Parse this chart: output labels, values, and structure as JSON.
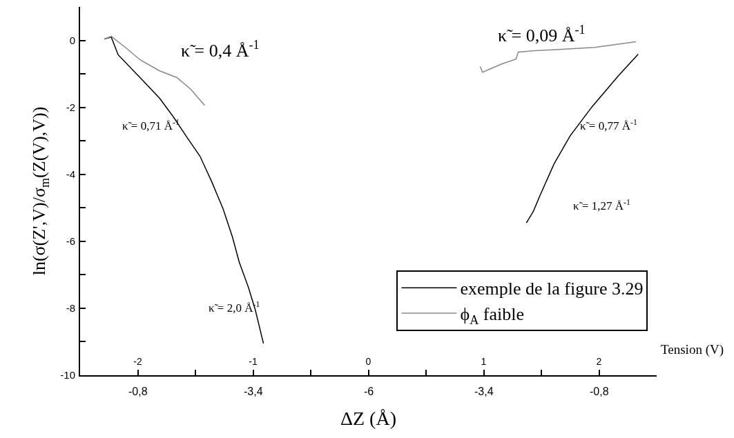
{
  "chart_data": {
    "type": "line",
    "xlabel": "Tension (V)",
    "ylabel": "ln(σ(Z',V)/σ$_{m}$(Z(V),V))",
    "xlim": [
      -2.5,
      2.5
    ],
    "xticks": [
      -2,
      {
        "value": -1.5,
        "label": null
      },
      -1,
      {
        "value": -0.5,
        "label": null
      },
      0,
      {
        "value": 0.5,
        "label": null
      },
      1,
      {
        "value": 1.5,
        "label": null
      },
      2
    ],
    "ylim": [
      -10,
      1
    ],
    "yticks": [
      -10,
      {
        "value": -9,
        "label": null
      },
      -8,
      {
        "value": -7,
        "label": null
      },
      -6,
      {
        "value": -5,
        "label": null
      },
      -4,
      {
        "value": -3,
        "label": null
      },
      -2,
      {
        "value": -1,
        "label": null
      },
      0
    ],
    "series": [
      {
        "name": "exemple de la figure 3.29",
        "color": "#000000",
        "x": [
          -2.29,
          -2.23,
          -2.17,
          -1.98,
          -1.81,
          -1.69,
          -1.57,
          -1.46,
          -1.36,
          -1.26,
          -1.18,
          -1.12,
          -1.04,
          -0.98,
          -0.91,
          null,
          1.37,
          1.43,
          1.49,
          1.61,
          1.75,
          1.94,
          2.17,
          2.34
        ],
        "values": [
          0.04,
          0.1,
          -0.43,
          -1.11,
          -1.73,
          -2.29,
          -2.91,
          -3.46,
          -4.21,
          -5.03,
          -5.86,
          -6.62,
          -7.38,
          -8.06,
          -9.05,
          null,
          -5.45,
          -5.11,
          -4.62,
          -3.69,
          -2.85,
          -1.98,
          -1.05,
          -0.41
        ]
      },
      {
        "name": "ϕ$_{A}$ faible",
        "color": "#888888",
        "x": [
          -2.29,
          -2.23,
          -2.1,
          -1.98,
          -1.81,
          -1.66,
          -1.54,
          -1.42,
          null,
          0.97,
          0.99,
          1.16,
          1.28,
          1.3,
          1.44,
          1.65,
          1.96,
          2.32
        ],
        "values": [
          0.04,
          0.12,
          -0.23,
          -0.58,
          -0.91,
          -1.11,
          -1.46,
          -1.94,
          null,
          -0.78,
          -0.95,
          -0.7,
          -0.56,
          -0.35,
          -0.31,
          -0.27,
          -0.21,
          -0.04
        ]
      }
    ],
    "annotations": [
      "κ̃ = 0,4 Å$^{-1}$",
      "κ̃ = 0,09 Å$^{-1}$",
      "κ̃ = 0,71 Å$^{-1}$",
      "κ̃ = 0,77 Å$^{-1}$",
      "κ̃ = 1,27 Å$^{-1}$",
      "κ̃ = 2,0 Å$^{-1}$",
      "-0,8",
      "-3,4",
      "-6",
      "-3,4",
      "-0,8",
      "ΔZ (Å)"
    ],
    "legend": "bottom right",
    "grid": false,
    "marker": "none",
    "line_style": "solid"
  }
}
